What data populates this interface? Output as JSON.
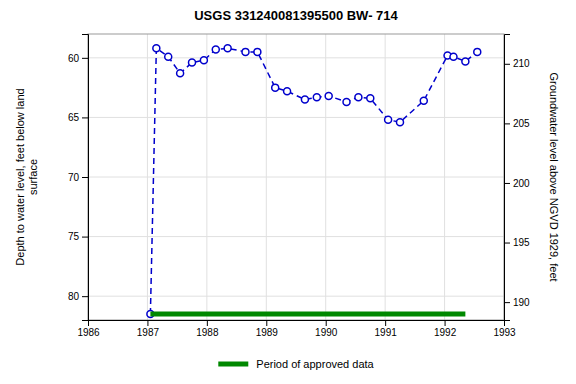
{
  "chart_data": {
    "type": "line",
    "title": "USGS 331240081395500 BW- 714",
    "ylabel": "Depth to water level, feet below land\nsurface",
    "y2label": "Groundwater level above NGVD 1929, feet",
    "x": [
      1987.05,
      1987.15,
      1987.35,
      1987.55,
      1987.75,
      1987.95,
      1988.15,
      1988.35,
      1988.65,
      1988.85,
      1989.15,
      1989.35,
      1989.65,
      1989.85,
      1990.05,
      1990.35,
      1990.55,
      1990.75,
      1991.05,
      1991.25,
      1991.65,
      1992.05,
      1992.15,
      1992.35,
      1992.55
    ],
    "series": [
      {
        "color": "#0000cc",
        "line_style": "dashed",
        "marker": "circle",
        "values": [
          81.5,
          59.2,
          59.9,
          61.3,
          60.4,
          60.2,
          59.3,
          59.2,
          59.5,
          59.5,
          62.5,
          62.8,
          63.5,
          63.3,
          63.2,
          63.7,
          63.3,
          63.4,
          65.2,
          65.4,
          63.6,
          59.8,
          59.9,
          60.3,
          59.5
        ]
      },
      {
        "name": "Period of approved data",
        "color": "#008800",
        "line_style": "solid",
        "marker": "none",
        "x": [
          1987.05,
          1992.35
        ],
        "values": [
          81.5,
          81.5
        ]
      }
    ],
    "xlim": [
      1986,
      1993
    ],
    "xticks": [
      1986,
      1987,
      1988,
      1989,
      1990,
      1991,
      1992,
      1993
    ],
    "ylim": [
      82,
      58
    ],
    "yticks": [
      60,
      65,
      70,
      75,
      80
    ],
    "y2lim": [
      188.5,
      212.5
    ],
    "y2ticks": [
      190,
      195,
      200,
      205,
      210
    ],
    "grid": true,
    "legend": "bottom"
  }
}
